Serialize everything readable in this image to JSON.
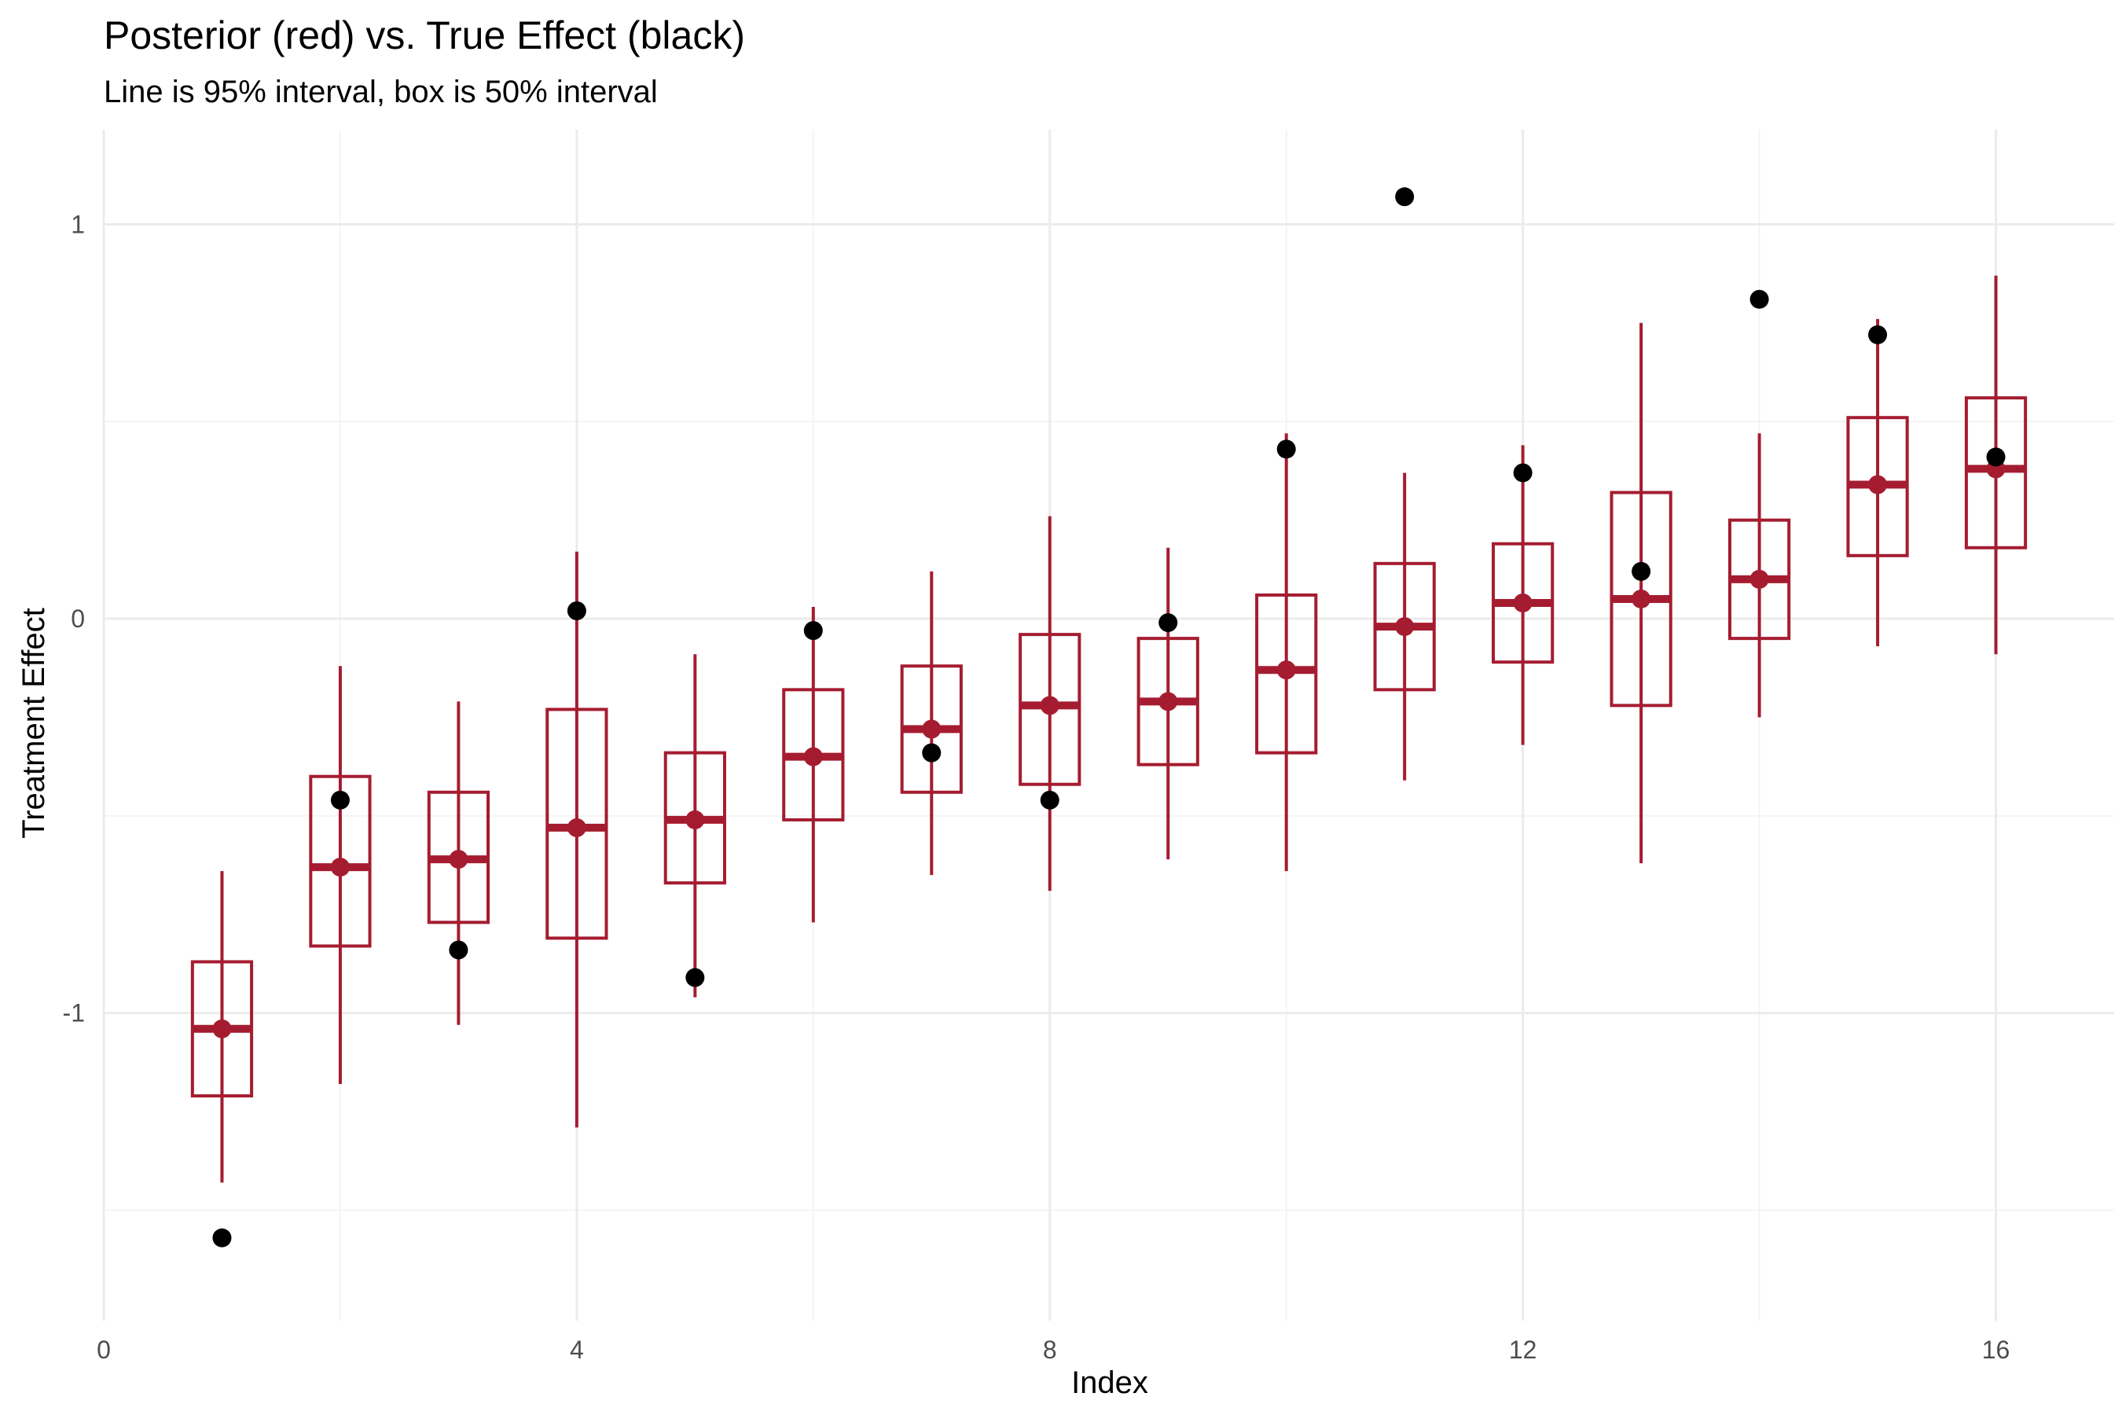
{
  "chart_data": {
    "type": "scatter",
    "title": "Posterior (red) vs. True Effect (black)",
    "subtitle": "Line is 95% interval, box is 50% interval",
    "xlabel": "Index",
    "ylabel": "Treatment Effect",
    "xlim": [
      0,
      17
    ],
    "ylim": [
      -1.78,
      1.24
    ],
    "x_ticks": [
      0,
      4,
      8,
      12,
      16
    ],
    "x_tick_labels": [
      "0",
      "4",
      "8",
      "12",
      "16"
    ],
    "y_ticks": [
      -1,
      0,
      1
    ],
    "y_tick_labels": [
      "-1",
      "0",
      "1"
    ],
    "grid": true,
    "colors": {
      "posterior": "#A51C30",
      "true_effect": "#000000"
    },
    "series": [
      {
        "name": "Posterior",
        "x": [
          1,
          2,
          3,
          4,
          5,
          6,
          7,
          8,
          9,
          10,
          11,
          12,
          13,
          14,
          15,
          16
        ],
        "median": [
          -1.04,
          -0.63,
          -0.61,
          -0.53,
          -0.51,
          -0.35,
          -0.28,
          -0.22,
          -0.21,
          -0.13,
          -0.02,
          0.04,
          0.05,
          0.1,
          0.34,
          0.38
        ],
        "q25": [
          -1.21,
          -0.83,
          -0.77,
          -0.81,
          -0.67,
          -0.51,
          -0.44,
          -0.42,
          -0.37,
          -0.34,
          -0.18,
          -0.11,
          -0.22,
          -0.05,
          0.16,
          0.18
        ],
        "q75": [
          -0.87,
          -0.4,
          -0.44,
          -0.23,
          -0.34,
          -0.18,
          -0.12,
          -0.04,
          -0.05,
          0.06,
          0.14,
          0.19,
          0.32,
          0.25,
          0.51,
          0.56
        ],
        "lower95": [
          -1.43,
          -1.18,
          -1.03,
          -1.29,
          -0.96,
          -0.77,
          -0.65,
          -0.69,
          -0.61,
          -0.64,
          -0.41,
          -0.32,
          -0.62,
          -0.25,
          -0.07,
          -0.09
        ],
        "upper95": [
          -0.64,
          -0.12,
          -0.21,
          0.17,
          -0.09,
          0.03,
          0.12,
          0.26,
          0.18,
          0.47,
          0.37,
          0.44,
          0.75,
          0.47,
          0.76,
          0.87
        ]
      },
      {
        "name": "True Effect",
        "x": [
          1,
          2,
          3,
          4,
          5,
          6,
          7,
          8,
          9,
          10,
          11,
          12,
          13,
          14,
          15,
          16
        ],
        "y": [
          -1.57,
          -0.46,
          -0.84,
          0.02,
          -0.91,
          -0.03,
          -0.34,
          -0.46,
          -0.01,
          0.43,
          1.07,
          0.37,
          0.12,
          0.81,
          0.72,
          0.41
        ]
      }
    ]
  }
}
